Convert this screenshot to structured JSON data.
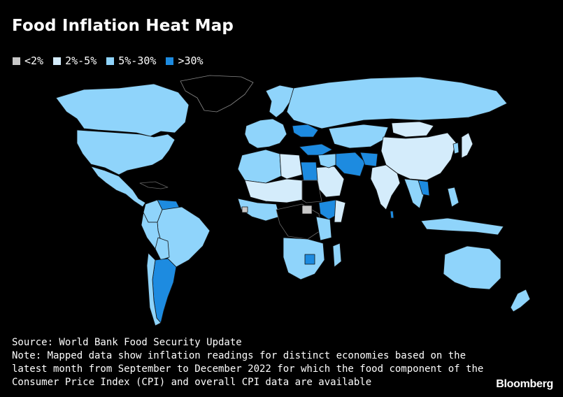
{
  "title": "Food Inflation Heat Map",
  "legend": [
    {
      "label": "<2%",
      "color": "#c8c8c8"
    },
    {
      "label": "2%-5%",
      "color": "#d4ecfb"
    },
    {
      "label": "5%-30%",
      "color": "#8fd4fb"
    },
    {
      "label": ">30%",
      "color": "#1d8be0"
    }
  ],
  "colors": {
    "background": "#000000",
    "no_data": "#000000",
    "border": "#1a1a1a"
  },
  "source": "Source: World Bank Food Security Update",
  "note": "Note: Mapped data show inflation readings for distinct economies based on the latest month from September to December 2022 for which the food component of the Consumer Price Index (CPI) and overall CPI data are available",
  "brand": "Bloomberg"
}
